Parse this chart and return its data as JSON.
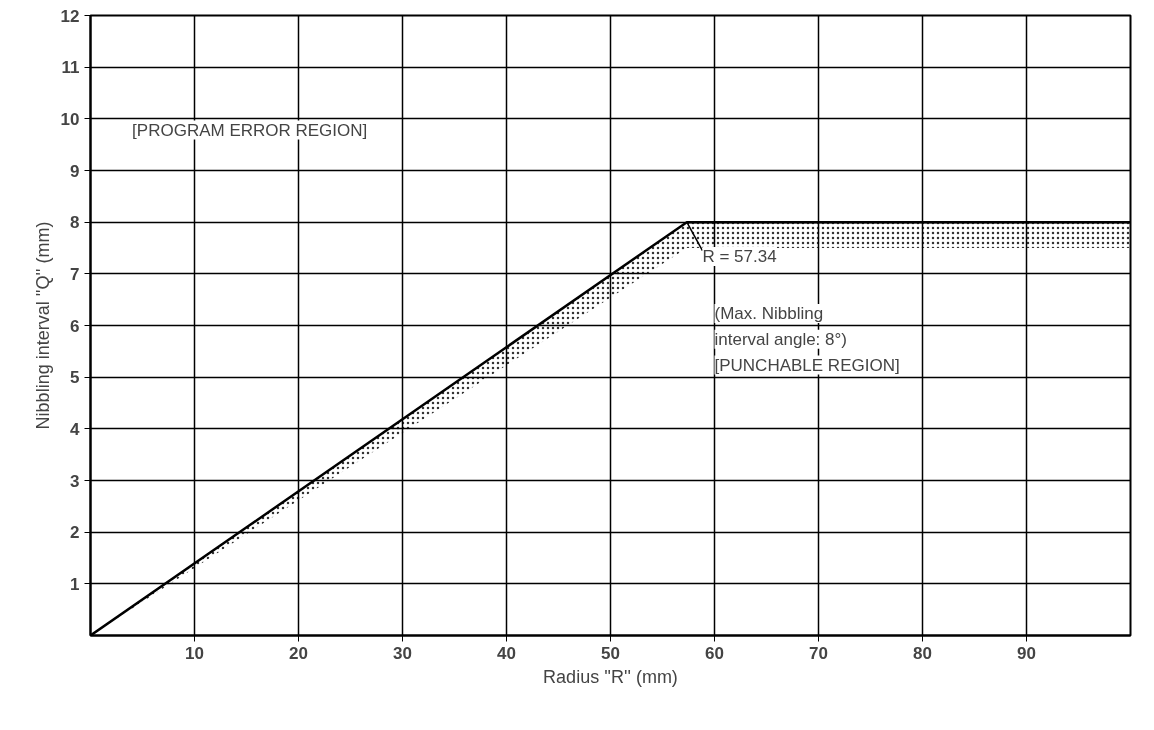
{
  "chart_data": {
    "type": "line",
    "xlabel": "Radius ''R'' (mm)",
    "ylabel": "Nibbling interval ''Q'' (mm)",
    "x": [
      0,
      57.34,
      100
    ],
    "series": [
      {
        "color": "#000000",
        "values": [
          0,
          8,
          8
        ],
        "lower": [
          0,
          7.5,
          7.5
        ],
        "upper": [
          0,
          8,
          8
        ]
      }
    ],
    "xlim": [
      0,
      100
    ],
    "ylim": [
      0,
      12
    ],
    "xticks": [
      10,
      20,
      30,
      40,
      50,
      60,
      70,
      80,
      90
    ],
    "yticks": [
      1,
      2,
      3,
      4,
      5,
      6,
      7,
      8,
      9,
      10,
      11,
      12
    ],
    "grid": true,
    "marker": "none",
    "line_style": "solid",
    "annotations": [
      "[PROGRAM ERROR REGION]",
      {
        "text": "R = 57.34",
        "x": 57.34,
        "y": 8
      },
      "(Max. Nibbling interval angle: 8°)",
      "[PUNCHABLE REGION]"
    ]
  }
}
